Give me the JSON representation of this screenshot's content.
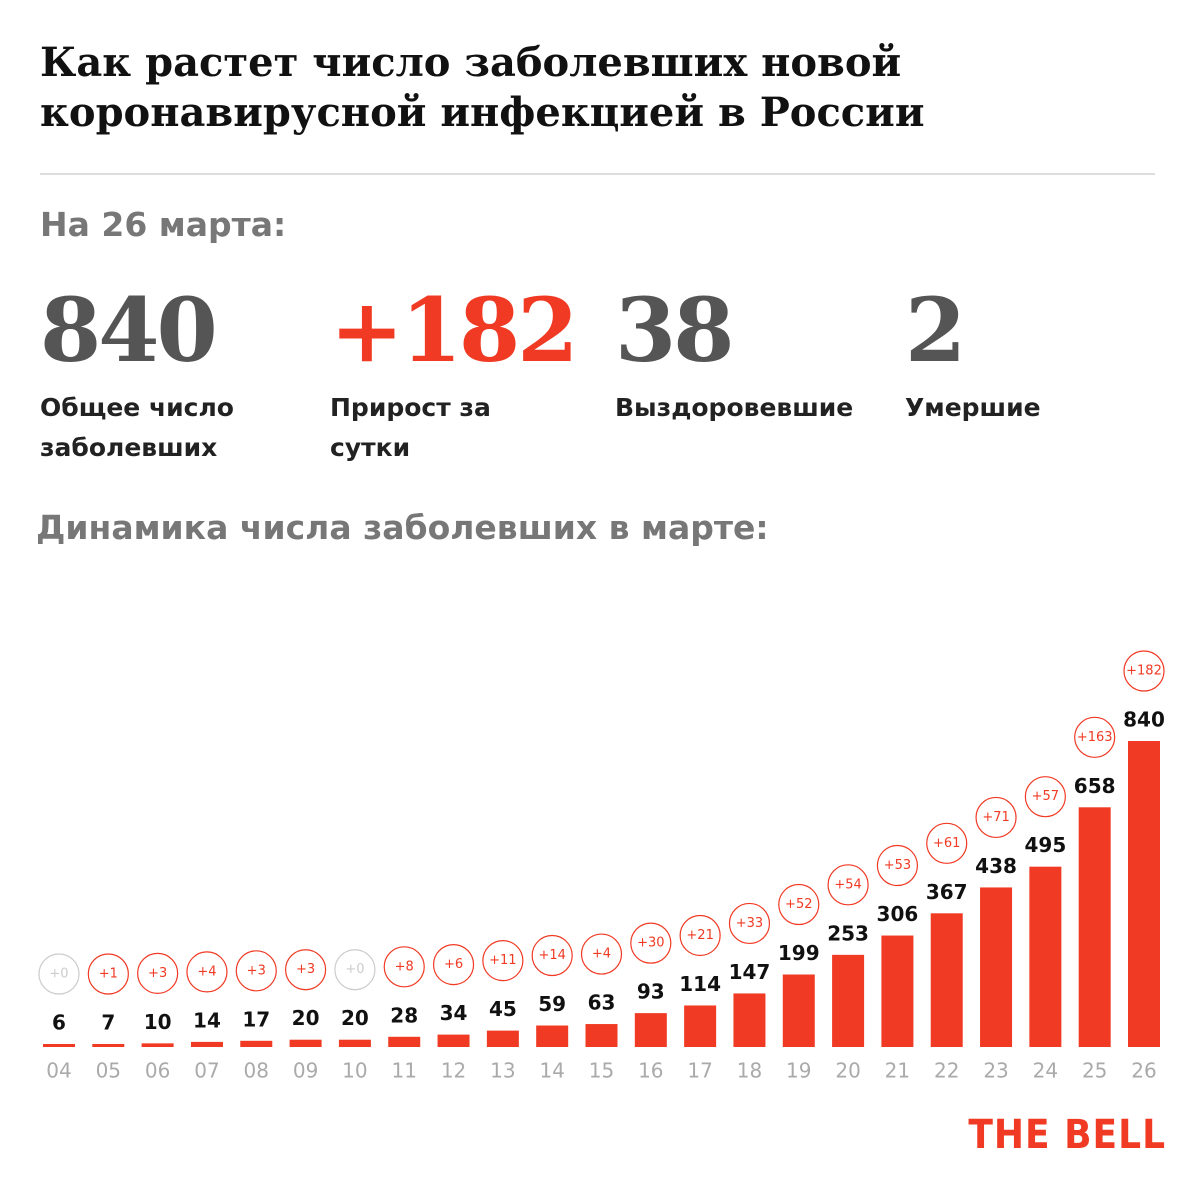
{
  "header": {
    "title": "Как растет число заболевших новой коронавирусной инфекцией в России",
    "date": "На 26 марта:"
  },
  "stats": [
    {
      "value": "840",
      "label": "Общее число заболевших",
      "color": "#555555"
    },
    {
      "value": "+182",
      "label": "Прирост за сутки",
      "color": "#f03a24"
    },
    {
      "value": "38",
      "label": "Выздоровевшие",
      "color": "#555555"
    },
    {
      "value": "2",
      "label": "Умершие",
      "color": "#555555"
    }
  ],
  "chart_data": {
    "type": "bar",
    "title": "Динамика числа заболевших в марте:",
    "categories": [
      "04",
      "05",
      "06",
      "07",
      "08",
      "09",
      "10",
      "11",
      "12",
      "13",
      "14",
      "15",
      "16",
      "17",
      "18",
      "19",
      "20",
      "21",
      "22",
      "23",
      "24",
      "25",
      "26"
    ],
    "values": [
      6,
      7,
      10,
      14,
      17,
      20,
      20,
      28,
      34,
      45,
      59,
      63,
      93,
      114,
      147,
      199,
      253,
      306,
      367,
      438,
      495,
      658,
      840
    ],
    "color": "#f03a24",
    "daily_increase": {
      "values": [
        0,
        1,
        3,
        4,
        3,
        3,
        0,
        8,
        6,
        11,
        14,
        4,
        30,
        21,
        33,
        52,
        54,
        53,
        61,
        71,
        57,
        163,
        182
      ],
      "value_labels": [
        "+0",
        "+1",
        "+3",
        "+4",
        "+3",
        "+3",
        "+0",
        "+8",
        "+6",
        "+11",
        "+14",
        "+4",
        "+30",
        "+21",
        "+33",
        "+52",
        "+54",
        "+53",
        "+61",
        "+71",
        "+57",
        "+163",
        "+182"
      ],
      "color": "#f03a24",
      "zero_color": "#cccccc"
    }
  },
  "logo": "THE BELL"
}
